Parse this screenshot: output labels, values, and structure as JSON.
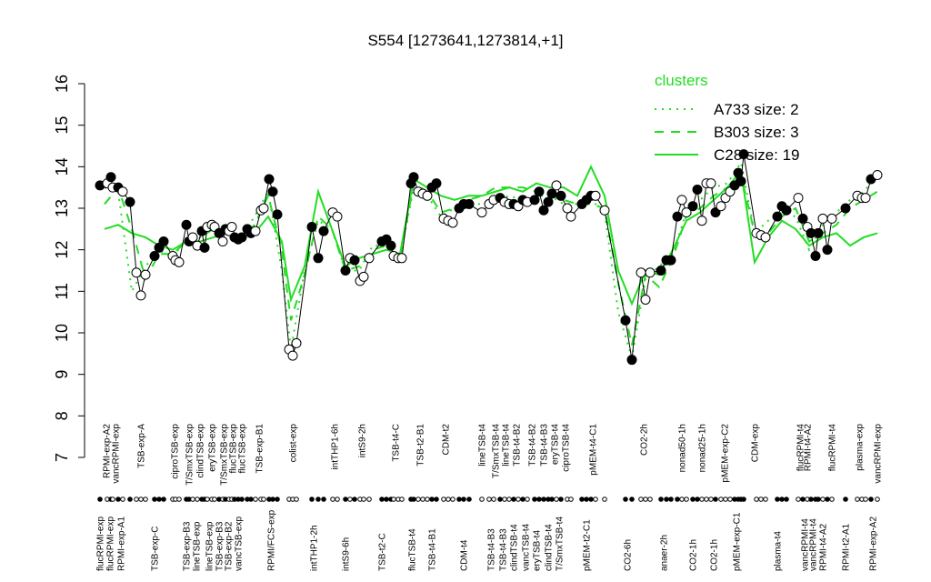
{
  "chart_data": {
    "type": "line",
    "title": "S554 [1273641,1273814,+1]",
    "xlim": [
      100,
      970
    ],
    "ylim": [
      7,
      16
    ],
    "yticks": [
      7,
      8,
      9,
      10,
      11,
      12,
      13,
      14,
      15,
      16
    ],
    "legend_title": "clusters",
    "legend_position": "top-right",
    "points": {
      "color": "#000000",
      "x": [
        110,
        118,
        122,
        124,
        130,
        135,
        143,
        150,
        155,
        160,
        170,
        175,
        180,
        190,
        193,
        197,
        205,
        208,
        212,
        217,
        222,
        225,
        228,
        233,
        236,
        241,
        245,
        248,
        252,
        255,
        258,
        262,
        266,
        272,
        276,
        281,
        287,
        290,
        296,
        300,
        305,
        318,
        322,
        326,
        343,
        350,
        356,
        366,
        371,
        380,
        385,
        390,
        396,
        400,
        406,
        420,
        425,
        430,
        433,
        438,
        442,
        452,
        455,
        460,
        465,
        470,
        475,
        480,
        488,
        493,
        498,
        505,
        510,
        516,
        530,
        538,
        543,
        550,
        555,
        560,
        565,
        570,
        575,
        580,
        588,
        593,
        598,
        603,
        607,
        612,
        617,
        624,
        628,
        640,
        645,
        650,
        655,
        665,
        688,
        695,
        705,
        710,
        715,
        727,
        733,
        738,
        745,
        750,
        755,
        762,
        767,
        772,
        777,
        782,
        787,
        793,
        798,
        803,
        808,
        812,
        815,
        818,
        832,
        837,
        842,
        855,
        860,
        865,
        878,
        883,
        888,
        892,
        897,
        900,
        905,
        910,
        915,
        930,
        943,
        948,
        952,
        958,
        965
      ],
      "values": [
        13.55,
        13.6,
        13.75,
        13.5,
        13.5,
        13.4,
        13.15,
        11.45,
        10.9,
        11.4,
        11.85,
        12.05,
        12.2,
        11.85,
        11.75,
        11.7,
        12.6,
        12.2,
        12.3,
        12.1,
        12.45,
        12.05,
        12.55,
        12.6,
        12.55,
        12.4,
        12.2,
        12.5,
        12.45,
        12.55,
        12.3,
        12.25,
        12.3,
        12.5,
        12.4,
        12.45,
        12.95,
        13,
        13.7,
        13.4,
        12.85,
        9.6,
        9.45,
        9.75,
        12.55,
        11.8,
        12.45,
        12.9,
        12.8,
        11.5,
        11.8,
        11.75,
        11.25,
        11.35,
        11.8,
        12.2,
        12.25,
        12.1,
        11.85,
        11.8,
        11.8,
        13.6,
        13.75,
        13.4,
        13.35,
        13.3,
        13.5,
        13.6,
        12.75,
        12.7,
        12.65,
        13,
        13.1,
        13.1,
        12.9,
        13.1,
        13.2,
        13.25,
        13.15,
        13.1,
        13.1,
        13.05,
        13.2,
        13.15,
        13.2,
        13.4,
        12.95,
        13.15,
        13.35,
        13.55,
        13.3,
        13,
        12.8,
        13.1,
        13.2,
        13.3,
        13.3,
        12.95,
        10.3,
        9.35,
        11.45,
        10.8,
        11.45,
        11.5,
        11.75,
        11.75,
        12.8,
        13.2,
        12.9,
        13.05,
        13.45,
        12.7,
        13.6,
        13.6,
        12.9,
        13.05,
        13.25,
        13.4,
        13.55,
        13.85,
        13.65,
        14.3,
        12.4,
        12.35,
        12.3,
        12.8,
        13.05,
        12.95,
        13.25,
        12.75,
        12.55,
        12.4,
        11.85,
        12.4,
        12.75,
        12,
        12.75,
        13,
        13.3,
        13.25,
        13.25,
        13.7,
        13.8
      ],
      "filled": [
        true,
        false,
        true,
        false,
        true,
        false,
        true,
        false,
        false,
        false,
        true,
        true,
        true,
        false,
        false,
        false,
        true,
        true,
        false,
        false,
        true,
        true,
        false,
        false,
        false,
        true,
        false,
        true,
        false,
        false,
        true,
        true,
        true,
        true,
        true,
        false,
        false,
        false,
        true,
        true,
        true,
        false,
        false,
        false,
        true,
        true,
        true,
        false,
        false,
        true,
        false,
        true,
        false,
        false,
        false,
        true,
        true,
        true,
        false,
        false,
        false,
        true,
        true,
        false,
        false,
        false,
        true,
        true,
        false,
        false,
        false,
        true,
        true,
        true,
        false,
        false,
        false,
        true,
        false,
        false,
        true,
        false,
        true,
        false,
        true,
        true,
        true,
        true,
        true,
        false,
        true,
        false,
        false,
        true,
        true,
        true,
        false,
        false,
        true,
        true,
        false,
        false,
        false,
        true,
        true,
        true,
        true,
        false,
        false,
        true,
        true,
        false,
        false,
        false,
        true,
        false,
        false,
        false,
        true,
        true,
        true,
        true,
        false,
        false,
        false,
        true,
        true,
        true,
        false,
        true,
        false,
        true,
        true,
        true,
        false,
        true,
        false,
        true,
        false,
        false,
        false,
        true,
        false
      ]
    },
    "series": [
      {
        "name": "A733 size: 2",
        "color": "#22dd22",
        "dash": "dotted",
        "x": [
          115,
          130,
          145,
          160,
          175,
          190,
          205,
          220,
          235,
          250,
          265,
          280,
          295,
          310,
          320,
          335,
          350,
          365,
          380,
          395,
          410,
          425,
          440,
          455,
          470,
          485,
          500,
          515,
          530,
          545,
          560,
          575,
          590,
          605,
          620,
          635,
          650,
          665,
          680,
          695,
          710,
          725,
          740,
          755,
          770,
          785,
          800,
          815,
          830,
          845,
          860,
          875,
          890,
          905,
          920,
          935,
          950,
          965
        ],
        "values": [
          13.5,
          13.4,
          11.0,
          11.6,
          12.0,
          11.8,
          12.3,
          12.3,
          12.5,
          12.4,
          12.3,
          12.8,
          13.4,
          11.5,
          9.6,
          11.5,
          12.7,
          12.5,
          11.5,
          11.5,
          12.1,
          12.1,
          11.8,
          13.5,
          13.3,
          12.8,
          13.0,
          13.1,
          13.1,
          13.2,
          13.3,
          13.2,
          13.3,
          13.3,
          13.1,
          13.1,
          13.2,
          12.9,
          10.5,
          9.4,
          11.3,
          11.6,
          11.9,
          12.9,
          13.2,
          13.5,
          13.6,
          14.1,
          12.4,
          12.7,
          12.9,
          12.8,
          12.0,
          12.6,
          12.9,
          13.2,
          13.4,
          13.8
        ]
      },
      {
        "name": "B303 size: 3",
        "color": "#22dd22",
        "dash": "dashed",
        "x": [
          115,
          130,
          145,
          160,
          175,
          190,
          205,
          220,
          235,
          250,
          265,
          280,
          295,
          310,
          320,
          335,
          350,
          365,
          380,
          395,
          410,
          425,
          440,
          455,
          470,
          485,
          500,
          515,
          530,
          545,
          560,
          575,
          590,
          605,
          620,
          635,
          650,
          665,
          680,
          695,
          710,
          725,
          740,
          755,
          770,
          785,
          800,
          815,
          830,
          845,
          860,
          875,
          890,
          905,
          920,
          935,
          950,
          965
        ],
        "values": [
          13.1,
          13.5,
          12.5,
          11.3,
          11.9,
          11.9,
          12.2,
          12.3,
          12.5,
          12.4,
          12.3,
          12.6,
          13.3,
          12.0,
          10.3,
          11.4,
          12.8,
          12.5,
          11.5,
          11.6,
          12.0,
          12.1,
          11.8,
          13.6,
          13.4,
          12.9,
          13.0,
          13.2,
          13.3,
          13.5,
          13.5,
          13.5,
          13.4,
          13.3,
          13.2,
          13.1,
          13.1,
          13.0,
          11.2,
          9.7,
          11.4,
          11.1,
          11.8,
          12.8,
          13.0,
          13.3,
          13.5,
          13.8,
          12.4,
          12.4,
          12.8,
          13.0,
          12.2,
          12.4,
          12.6,
          13.0,
          13.2,
          13.4
        ]
      },
      {
        "name": "C28 size: 19",
        "color": "#22dd22",
        "dash": "solid",
        "x": [
          115,
          130,
          145,
          160,
          175,
          190,
          205,
          220,
          235,
          250,
          265,
          280,
          295,
          310,
          320,
          335,
          350,
          365,
          380,
          395,
          410,
          425,
          440,
          455,
          470,
          485,
          500,
          515,
          530,
          545,
          560,
          575,
          590,
          605,
          620,
          635,
          650,
          665,
          680,
          695,
          710,
          725,
          740,
          755,
          770,
          785,
          800,
          815,
          830,
          845,
          860,
          875,
          890,
          905,
          920,
          935,
          950,
          965
        ],
        "values": [
          12.5,
          12.6,
          12.4,
          12.3,
          12.1,
          12.0,
          12.2,
          12.2,
          12.3,
          12.4,
          12.3,
          12.4,
          12.8,
          12.2,
          10.8,
          11.6,
          13.4,
          12.5,
          11.6,
          11.8,
          11.9,
          12.0,
          11.9,
          13.7,
          13.5,
          13.3,
          13.2,
          13.3,
          13.3,
          13.4,
          13.5,
          13.4,
          13.6,
          13.5,
          13.5,
          13.3,
          14.0,
          13.3,
          11.5,
          10.7,
          11.5,
          11.4,
          12.0,
          12.7,
          12.9,
          13.2,
          13.5,
          13.9,
          11.7,
          12.3,
          12.7,
          12.5,
          12.1,
          12.3,
          12.4,
          12.1,
          12.3,
          12.4
        ]
      }
    ],
    "xticks_top": [
      {
        "value": 117,
        "label": "RPMI-exp-A2"
      },
      {
        "value": 127,
        "label": "vancRPMI-exp"
      },
      {
        "value": 155,
        "label": "TSB-exp-A"
      },
      {
        "value": 192,
        "label": "ciproTSB-exp"
      },
      {
        "value": 208,
        "label": "T/SmxTSB-exp"
      },
      {
        "value": 220,
        "label": "clindTSB-exp"
      },
      {
        "value": 233,
        "label": "eryTSB-exp"
      },
      {
        "value": 246,
        "label": "T/SmxTSB-exp"
      },
      {
        "value": 256,
        "label": "flucTSB-exp"
      },
      {
        "value": 266,
        "label": "flucTSB-exp"
      },
      {
        "value": 285,
        "label": "TSB-exp-B1"
      },
      {
        "value": 322,
        "label": "colist-exp"
      },
      {
        "value": 368,
        "label": "intTHP1-6h"
      },
      {
        "value": 398,
        "label": "intS9-2h"
      },
      {
        "value": 435,
        "label": "TSB-t4-C"
      },
      {
        "value": 462,
        "label": "TSB-t2-B1"
      },
      {
        "value": 490,
        "label": "CDM-t2"
      },
      {
        "value": 530,
        "label": "lineTSB-t4"
      },
      {
        "value": 545,
        "label": "T/SmxTSB-t4"
      },
      {
        "value": 556,
        "label": "lineTSB-t4"
      },
      {
        "value": 568,
        "label": "TSB-t4-B2"
      },
      {
        "value": 585,
        "label": "TSB-t4-B2"
      },
      {
        "value": 598,
        "label": "TSB-t4-B3"
      },
      {
        "value": 610,
        "label": "eryTSB-t4"
      },
      {
        "value": 622,
        "label": "ciproTSB-t4"
      },
      {
        "value": 652,
        "label": "pMEM-t4-C1"
      },
      {
        "value": 708,
        "label": "CO2-2h"
      },
      {
        "value": 750,
        "label": "nonad50-1h"
      },
      {
        "value": 772,
        "label": "nonad25-1h"
      },
      {
        "value": 797,
        "label": "pMEM-exp-C2"
      },
      {
        "value": 830,
        "label": "CDM-exp"
      },
      {
        "value": 880,
        "label": "flucRPMI-t4"
      },
      {
        "value": 888,
        "label": "RPMI-t4-A2"
      },
      {
        "value": 915,
        "label": "flucRPMI-t4"
      },
      {
        "value": 945,
        "label": "plasma-exp"
      },
      {
        "value": 965,
        "label": "vancRPMI-exp"
      }
    ],
    "xticks_bottom": [
      {
        "value": 110,
        "label": "flucRPMI-exp"
      },
      {
        "value": 121,
        "label": "flucRPMI-exp"
      },
      {
        "value": 133,
        "label": "RPMI-exp-A1"
      },
      {
        "value": 170,
        "label": "TSB-exp-C"
      },
      {
        "value": 205,
        "label": "TSB-exp-B3"
      },
      {
        "value": 216,
        "label": "lineTSB-exp"
      },
      {
        "value": 230,
        "label": "lineTSB-exp"
      },
      {
        "value": 241,
        "label": "TSB-exp-B3"
      },
      {
        "value": 251,
        "label": "TSB-exp-B2"
      },
      {
        "value": 262,
        "label": "vancTSB-exp"
      },
      {
        "value": 298,
        "label": "RPMI/FCS-exp"
      },
      {
        "value": 345,
        "label": "intTHP1-2h"
      },
      {
        "value": 380,
        "label": "intS9-6h"
      },
      {
        "value": 420,
        "label": "TSB-t2-C"
      },
      {
        "value": 453,
        "label": "flucTSB-t4"
      },
      {
        "value": 475,
        "label": "TSB-t4-B1"
      },
      {
        "value": 510,
        "label": "CDM-t4"
      },
      {
        "value": 540,
        "label": "TSB-t4-B3"
      },
      {
        "value": 553,
        "label": "TSB-t4-B3"
      },
      {
        "value": 565,
        "label": "clindTSB-t4"
      },
      {
        "value": 578,
        "label": "vancTSB-t4"
      },
      {
        "value": 590,
        "label": "eryTSB-t4"
      },
      {
        "value": 603,
        "label": "clindTSB-t4"
      },
      {
        "value": 615,
        "label": "T/SmxTSB-t4"
      },
      {
        "value": 645,
        "label": "pMEM-t2-C1"
      },
      {
        "value": 690,
        "label": "CO2-6h"
      },
      {
        "value": 730,
        "label": "anaer-2h"
      },
      {
        "value": 762,
        "label": "CO2-1h"
      },
      {
        "value": 785,
        "label": "CO2-1h"
      },
      {
        "value": 810,
        "label": "pMEM-exp-C1"
      },
      {
        "value": 855,
        "label": "plasma-t4"
      },
      {
        "value": 885,
        "label": "vancRPMI-t4"
      },
      {
        "value": 894,
        "label": "vancRPMI-t4"
      },
      {
        "value": 905,
        "label": "RPMI-t4-A2"
      },
      {
        "value": 930,
        "label": "RPMI-t2-A1"
      },
      {
        "value": 960,
        "label": "RPMI-exp-A2"
      }
    ]
  }
}
